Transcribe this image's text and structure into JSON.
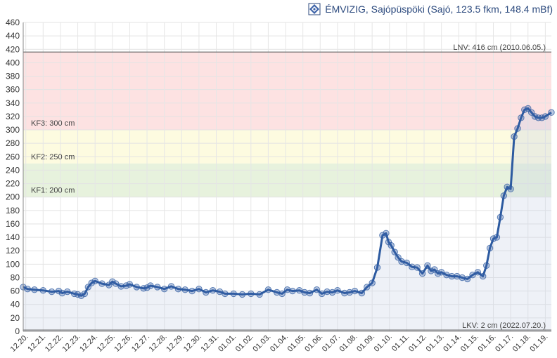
{
  "header": {
    "title": "ÉMVIZIG, Sajópüspöki (Sajó, 123.5 fkm, 148.4 mBf)",
    "logo_icon": "emvizig-logo-icon"
  },
  "chart_data": {
    "type": "area",
    "y_ticks": [
      0,
      20,
      40,
      60,
      80,
      100,
      120,
      140,
      160,
      180,
      200,
      220,
      240,
      260,
      280,
      300,
      320,
      340,
      360,
      380,
      400,
      420,
      440,
      460
    ],
    "ylim": [
      0,
      460
    ],
    "x_ticks": [
      "12.20.",
      "12.21.",
      "12.22.",
      "12.23.",
      "12.24.",
      "12.25.",
      "12.26.",
      "12.27.",
      "12.28.",
      "12.29.",
      "12.30.",
      "12.31.",
      "01.01.",
      "01.02.",
      "01.03.",
      "01.04.",
      "01.05.",
      "01.06.",
      "01.07.",
      "01.08.",
      "01.09.",
      "01.10.",
      "01.11.",
      "01.12.",
      "01.13.",
      "01.14.",
      "01.15.",
      "01.16.",
      "01.17.",
      "01.18.",
      "01.19."
    ],
    "xlim": [
      -0.15,
      30.35
    ],
    "grid": true,
    "bands": [
      {
        "from": 200,
        "to": 250,
        "label": "KF1: 200 cm",
        "color": "#e7f2dd"
      },
      {
        "from": 250,
        "to": 300,
        "label": "KF2: 250 cm",
        "color": "#fdfbe0"
      },
      {
        "from": 300,
        "to": 416,
        "label": "KF3: 300 cm",
        "color": "#fde2e2"
      }
    ],
    "lines": [
      {
        "value": 416,
        "label": "LNV: 416 cm (2010.06.05.)"
      },
      {
        "value": 2,
        "label": "LKV: 2 cm (2022.07.20.)"
      }
    ],
    "series": [
      {
        "color": "#2c5aa0",
        "x": [
          -0.15,
          0.1,
          0.5,
          1.0,
          1.5,
          1.9,
          2.1,
          2.4,
          2.8,
          3.0,
          3.2,
          3.4,
          3.6,
          3.8,
          4.0,
          4.4,
          4.8,
          5.0,
          5.2,
          5.5,
          5.8,
          6.0,
          6.4,
          6.8,
          7.0,
          7.2,
          7.6,
          8.0,
          8.4,
          8.8,
          9.2,
          9.6,
          10.0,
          10.4,
          10.8,
          11.2,
          11.5,
          12.0,
          12.5,
          13.0,
          13.5,
          14.0,
          14.5,
          14.8,
          15.1,
          15.4,
          15.8,
          16.1,
          16.4,
          16.8,
          17.1,
          17.4,
          17.7,
          18.0,
          18.4,
          18.7,
          19.0,
          19.4,
          19.7,
          20.0,
          20.3,
          20.6,
          20.8,
          20.95,
          21.1,
          21.3,
          21.5,
          21.7,
          22.0,
          22.3,
          22.6,
          22.9,
          23.2,
          23.4,
          23.6,
          23.8,
          24.0,
          24.3,
          24.6,
          24.9,
          25.2,
          25.5,
          25.8,
          26.1,
          26.4,
          26.6,
          26.8,
          27.0,
          27.2,
          27.4,
          27.6,
          27.8,
          28.0,
          28.2,
          28.4,
          28.6,
          28.8,
          29.0,
          29.2,
          29.4,
          29.6,
          29.8,
          30.0,
          30.35
        ],
        "values": [
          66,
          63,
          62,
          61,
          59,
          60,
          57,
          59,
          56,
          55,
          53,
          56,
          66,
          72,
          75,
          71,
          69,
          74,
          71,
          67,
          68,
          70,
          66,
          64,
          65,
          68,
          66,
          63,
          67,
          63,
          62,
          60,
          63,
          58,
          61,
          59,
          56,
          56,
          55,
          56,
          55,
          62,
          58,
          56,
          62,
          60,
          61,
          58,
          57,
          62,
          56,
          59,
          58,
          61,
          57,
          58,
          60,
          57,
          66,
          72,
          95,
          143,
          146,
          133,
          128,
          118,
          110,
          104,
          102,
          96,
          95,
          86,
          98,
          90,
          92,
          86,
          88,
          84,
          82,
          82,
          80,
          78,
          84,
          88,
          82,
          98,
          124,
          138,
          140,
          170,
          202,
          215,
          212,
          290,
          302,
          318,
          330,
          332,
          326,
          320,
          318,
          318,
          320,
          326
        ]
      }
    ]
  }
}
